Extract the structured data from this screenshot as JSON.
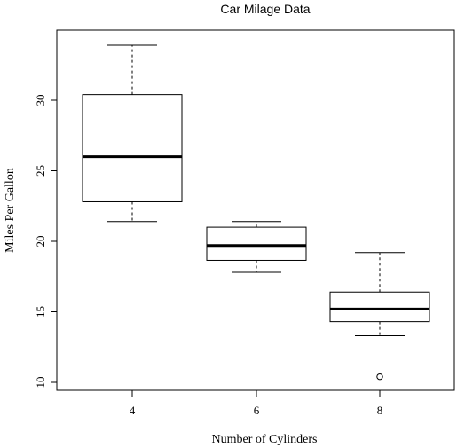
{
  "chart_data": {
    "type": "boxplot",
    "title": "Car Milage Data",
    "xlabel": "Number of Cylinders",
    "ylabel": "Miles Per Gallon",
    "categories": [
      "4",
      "6",
      "8"
    ],
    "ylim": [
      9.5,
      35
    ],
    "yticks": [
      10,
      15,
      20,
      25,
      30
    ],
    "grid": false,
    "boxes": [
      {
        "category": "4",
        "whisker_low": 21.4,
        "q1": 22.8,
        "median": 26.0,
        "q3": 30.4,
        "whisker_high": 33.9,
        "outliers": []
      },
      {
        "category": "6",
        "whisker_low": 17.8,
        "q1": 18.65,
        "median": 19.7,
        "q3": 21.0,
        "whisker_high": 21.4,
        "outliers": []
      },
      {
        "category": "8",
        "whisker_low": 13.3,
        "q1": 14.3,
        "median": 15.2,
        "q3": 16.4,
        "whisker_high": 19.2,
        "outliers": [
          10.4
        ]
      }
    ]
  }
}
